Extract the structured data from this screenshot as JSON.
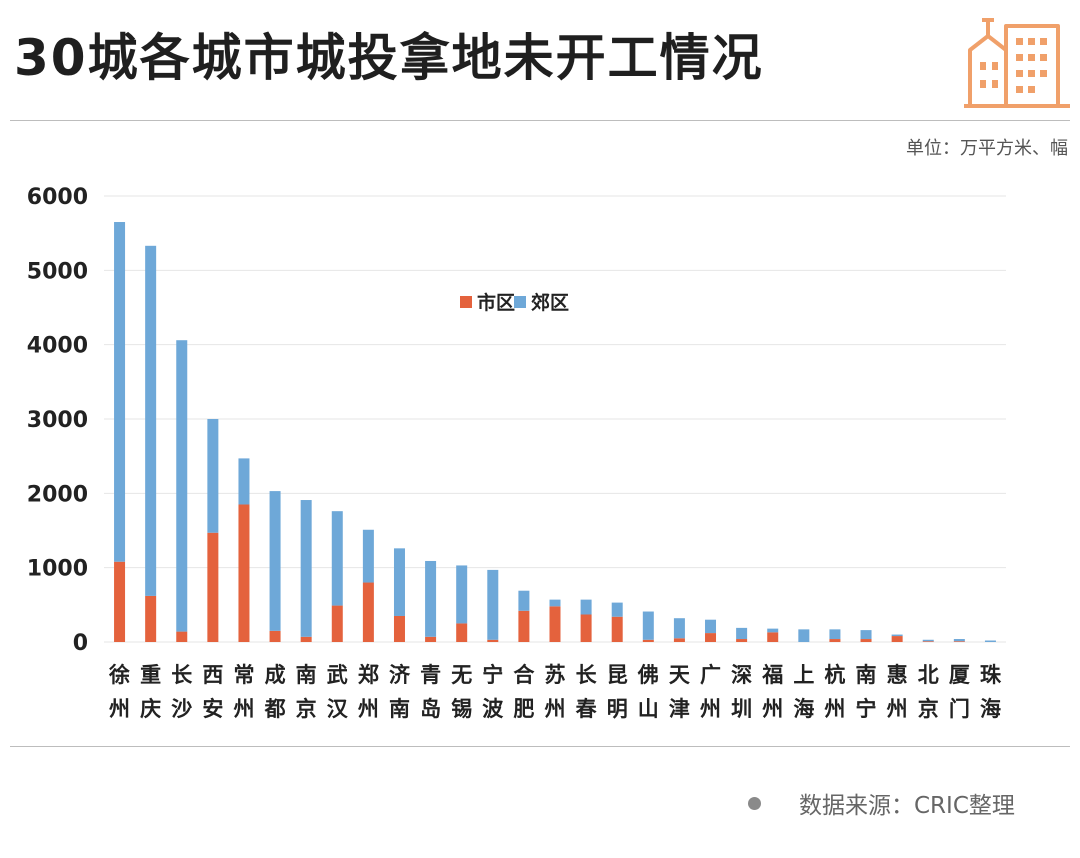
{
  "header": {
    "title": "30城各城市城投拿地未开工情况",
    "unit": "单位：万平方米、幅",
    "source": "数据来源：CRIC整理"
  },
  "colors": {
    "urban": "#e4623d",
    "suburban": "#6ea8d8",
    "logo": "#f0a06a",
    "grid": "#e6e6e6"
  },
  "icons": {
    "logo": "city-buildings-icon",
    "source_bullet": "bullet-dot-icon"
  },
  "chart_data": {
    "type": "bar",
    "stacked": true,
    "categories": [
      "徐州",
      "重庆",
      "长沙",
      "西安",
      "常州",
      "成都",
      "南京",
      "武汉",
      "郑州",
      "济南",
      "青岛",
      "无锡",
      "宁波",
      "合肥",
      "苏州",
      "长春",
      "昆明",
      "佛山",
      "天津",
      "广州",
      "深圳",
      "福州",
      "上海",
      "杭州",
      "南宁",
      "惠州",
      "北京",
      "厦门",
      "珠海"
    ],
    "series": [
      {
        "name": "市区",
        "values": [
          1080,
          620,
          140,
          1470,
          1850,
          150,
          70,
          490,
          800,
          350,
          70,
          250,
          30,
          420,
          480,
          370,
          340,
          30,
          50,
          120,
          40,
          130,
          0,
          40,
          40,
          80,
          10,
          10,
          0
        ]
      },
      {
        "name": "郊区",
        "values": [
          4570,
          4710,
          3920,
          1530,
          620,
          1880,
          1840,
          1270,
          710,
          910,
          1020,
          780,
          940,
          270,
          90,
          200,
          190,
          380,
          270,
          180,
          150,
          50,
          170,
          130,
          120,
          20,
          20,
          30,
          20
        ]
      }
    ],
    "ylim": [
      0,
      6000
    ],
    "yticks": [
      0,
      1000,
      2000,
      3000,
      4000,
      5000,
      6000
    ],
    "grid": true,
    "legend": "top-center"
  }
}
